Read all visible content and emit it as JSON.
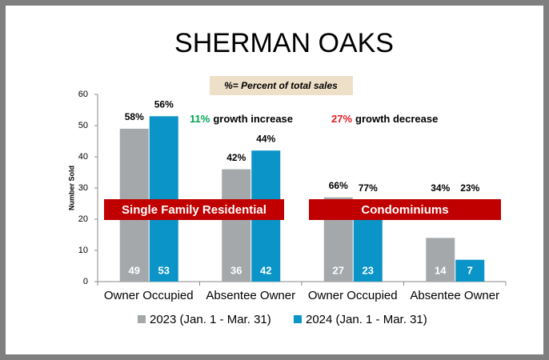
{
  "chart_data": {
    "type": "bar",
    "title": "SHERMAN OAKS",
    "note": "%= Percent of total sales",
    "ylabel": "Number Sold",
    "categories": [
      "Owner Occupied",
      "Absentee Owner",
      "Owner Occupied",
      "Absentee Owner"
    ],
    "series": [
      {
        "name": "2023 (Jan. 1 - Mar. 31)",
        "color": "#a5a8ab",
        "values": [
          49,
          36,
          27,
          14
        ],
        "percent_labels": [
          "58%",
          "42%",
          "66%",
          "34%"
        ]
      },
      {
        "name": "2024 (Jan. 1 - Mar. 31)",
        "color": "#0b94c8",
        "values": [
          53,
          42,
          23,
          7
        ],
        "percent_labels": [
          "56%",
          "44%",
          "77%",
          "23%"
        ]
      }
    ],
    "ylim": [
      0,
      60
    ],
    "yticks": [
      0,
      10,
      20,
      30,
      40,
      50,
      60
    ],
    "annotations": [
      {
        "highlight": "11%",
        "highlight_color": "#00a651",
        "text": "growth increase"
      },
      {
        "highlight": "27%",
        "highlight_color": "#e31b23",
        "text": "growth decrease"
      }
    ],
    "banners": [
      {
        "text": "Single Family Residential",
        "color": "#c00000"
      },
      {
        "text": "Condominiums",
        "color": "#c00000"
      }
    ],
    "legend": "bottom"
  }
}
